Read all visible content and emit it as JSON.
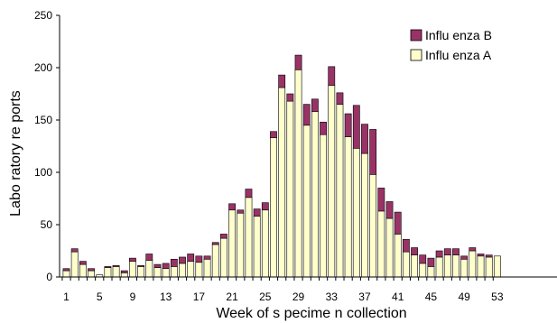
{
  "chart_data": {
    "type": "bar",
    "stacked": true,
    "xlabel": "Week of s pecime n collection",
    "ylabel": "Labo ratory re ports",
    "ylim": [
      0,
      250
    ],
    "yticks": [
      0,
      50,
      100,
      150,
      200,
      250
    ],
    "x_tick_labels": [
      "1",
      "5",
      "9",
      "13",
      "17",
      "21",
      "25",
      "29",
      "33",
      "37",
      "41",
      "45",
      "49",
      "53"
    ],
    "x_tick_positions": [
      1,
      5,
      9,
      13,
      17,
      21,
      25,
      29,
      33,
      37,
      41,
      45,
      49,
      53
    ],
    "grid": false,
    "legend_position": "top-right",
    "categories": [
      1,
      2,
      3,
      4,
      5,
      6,
      7,
      8,
      9,
      10,
      11,
      12,
      13,
      14,
      15,
      16,
      17,
      18,
      19,
      20,
      21,
      22,
      23,
      24,
      25,
      26,
      27,
      28,
      29,
      30,
      31,
      32,
      33,
      34,
      35,
      36,
      37,
      38,
      39,
      40,
      41,
      42,
      43,
      44,
      45,
      46,
      47,
      48,
      49,
      50,
      51,
      52,
      53
    ],
    "series": [
      {
        "name": "Influ enza A",
        "color": "#ffffcc",
        "values": [
          6,
          24,
          12,
          6,
          2,
          9,
          10,
          4,
          15,
          10,
          16,
          9,
          8,
          10,
          13,
          15,
          14,
          17,
          31,
          37,
          64,
          61,
          76,
          58,
          64,
          133,
          181,
          168,
          198,
          145,
          158,
          136,
          183,
          165,
          134,
          123,
          118,
          98,
          63,
          56,
          41,
          24,
          21,
          13,
          10,
          19,
          21,
          21,
          17,
          25,
          20,
          19,
          20
        ]
      },
      {
        "name": "Influ enza B",
        "color": "#993366",
        "values": [
          2,
          3,
          3,
          2,
          0,
          1,
          1,
          2,
          3,
          1,
          6,
          3,
          5,
          7,
          6,
          7,
          6,
          3,
          2,
          4,
          6,
          3,
          8,
          7,
          7,
          6,
          12,
          7,
          14,
          20,
          12,
          12,
          18,
          11,
          22,
          41,
          28,
          43,
          22,
          16,
          21,
          12,
          7,
          8,
          8,
          6,
          6,
          6,
          3,
          3,
          2,
          2,
          0
        ]
      }
    ]
  }
}
